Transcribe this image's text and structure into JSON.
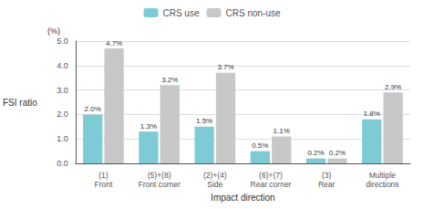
{
  "chart_data": {
    "type": "bar",
    "categories": [
      "(1)\nFront",
      "(5)+(8)\nFront corner",
      "(2)+(4)\nSide",
      "(6)+(7)\nRear corner",
      "(3)\nRear",
      "Multiple\ndirections"
    ],
    "series": [
      {
        "name": "CRS use",
        "color": "#7ecbd6",
        "values": [
          2.0,
          1.3,
          1.5,
          0.5,
          0.2,
          1.8
        ],
        "value_labels": [
          "2.0%",
          "1.3%",
          "1.5%",
          "0.5%",
          "0.2%",
          "1.8%"
        ]
      },
      {
        "name": "CRS non-use",
        "color": "#c8c8c8",
        "values": [
          4.7,
          3.2,
          3.7,
          1.1,
          0.2,
          2.9
        ],
        "value_labels": [
          "4.7%",
          "3.2%",
          "3.7%",
          "1.1%",
          "0.2%",
          "2.9%"
        ]
      }
    ],
    "xlabel": "Impact direction",
    "ylabel": "FSI ratio",
    "annotations": [
      "(%)"
    ],
    "ylim": [
      0,
      5.0
    ],
    "yticks": [
      {
        "value": 0.0,
        "label": "0.0"
      },
      {
        "value": 1.0,
        "label": "1.0"
      },
      {
        "value": 2.0,
        "label": "2.0"
      },
      {
        "value": 3.0,
        "label": "3.0"
      },
      {
        "value": 4.0,
        "label": "4.0"
      },
      {
        "value": 5.0,
        "label": "5.0"
      }
    ],
    "grid": true,
    "legend": "top",
    "data_labels": true
  }
}
